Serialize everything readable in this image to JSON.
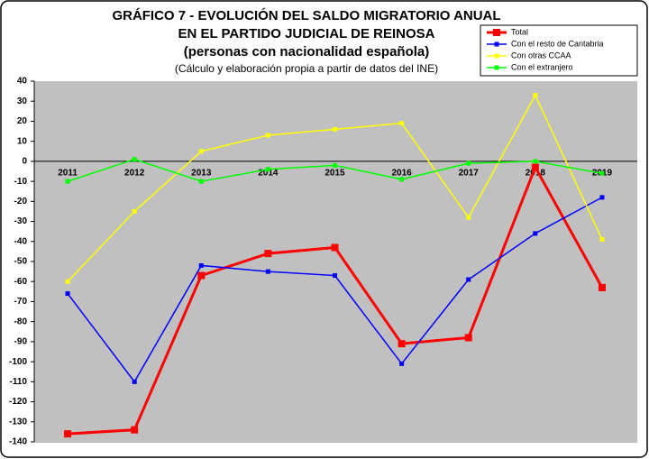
{
  "chart_data": {
    "type": "line",
    "title": [
      "GRÁFICO 7 - EVOLUCIÓN DEL SALDO MIGRATORIO ANUAL",
      "EN EL PARTIDO JUDICIAL DE REINOSA"
    ],
    "subtitle": "(personas con nacionalidad española)",
    "note": "(Cálculo y elaboración propia a partir de datos del INE)",
    "categories": [
      "2011",
      "2012",
      "2013",
      "2014",
      "2015",
      "2016",
      "2017",
      "2018",
      "2019"
    ],
    "series": [
      {
        "name": "Total",
        "color": "#ff0000",
        "values": [
          -136,
          -134,
          -57,
          -46,
          -43,
          -91,
          -88,
          -3,
          -63
        ]
      },
      {
        "name": "Con el resto de Cantabria",
        "color": "#0000ff",
        "values": [
          -66,
          -110,
          -52,
          -55,
          -57,
          -101,
          -59,
          -36,
          -18
        ]
      },
      {
        "name": "Con otras CCAA",
        "color": "#ffff00",
        "values": [
          -60,
          -25,
          5,
          13,
          16,
          19,
          -28,
          33,
          -39
        ]
      },
      {
        "name": "Con el extranjero",
        "color": "#00ff00",
        "values": [
          -10,
          1,
          -10,
          -4,
          -2,
          -9,
          -1,
          0,
          -6
        ]
      }
    ],
    "ylim": [
      -140,
      40
    ],
    "yticks": [
      40,
      30,
      20,
      10,
      0,
      -10,
      -20,
      -30,
      -40,
      -50,
      -60,
      -70,
      -80,
      -90,
      -100,
      -110,
      -120,
      -130,
      -140
    ],
    "grid": false,
    "legend": "top-right"
  }
}
